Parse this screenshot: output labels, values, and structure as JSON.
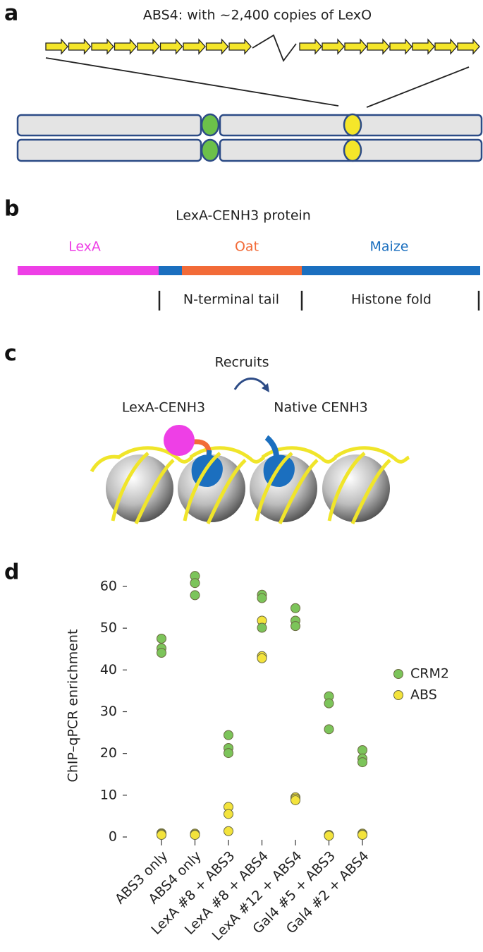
{
  "panels": {
    "a": {
      "label": "a",
      "title": "ABS4: with ~2,400 copies of LexO"
    },
    "b": {
      "label": "b",
      "title": "LexA-CENH3 protein",
      "domains": [
        "LexA",
        "Oat",
        "Maize"
      ],
      "regions": [
        "N-terminal tail",
        "Histone fold"
      ]
    },
    "c": {
      "label": "c",
      "recruits": "Recruits",
      "left": "LexA-CENH3",
      "right": "Native CENH3"
    },
    "d": {
      "label": "d"
    }
  },
  "chart_data": {
    "type": "strip",
    "y_label": "ChIP–qPCR enrichment",
    "categories": [
      "ABS3 only",
      "ABS4 only",
      "LexA #8 + ABS3",
      "LexA #8 + ABS4",
      "LexA #12 + ABS4",
      "Gal4 #5 + ABS3",
      "Gal4 #2 + ABS4"
    ],
    "series": [
      {
        "name": "CRM2",
        "color": "#7cc45a",
        "values": [
          [
            47.5,
            45.2,
            44.1
          ],
          [
            62.5,
            60.8,
            57.9
          ],
          [
            24.4,
            21.3,
            20.1
          ],
          [
            58.0,
            57.2,
            50.1
          ],
          [
            54.8,
            51.8,
            50.5
          ],
          [
            33.7,
            32.0,
            25.8
          ],
          [
            20.8,
            18.8,
            17.9
          ]
        ]
      },
      {
        "name": "ABS",
        "color": "#f3e33c",
        "values": [
          [
            0.9,
            0.7,
            0.5
          ],
          [
            0.8,
            0.6,
            0.5
          ],
          [
            7.2,
            5.5,
            1.4
          ],
          [
            51.8,
            43.3,
            42.8
          ],
          [
            9.5,
            9.2,
            8.8
          ],
          [
            0.5,
            0.4,
            0.3
          ],
          [
            0.8,
            0.6,
            0.5
          ]
        ]
      }
    ],
    "ylim": [
      -1.5,
      64
    ],
    "yticks": [
      0,
      10,
      20,
      30,
      40,
      50,
      60
    ],
    "legend": "right"
  }
}
